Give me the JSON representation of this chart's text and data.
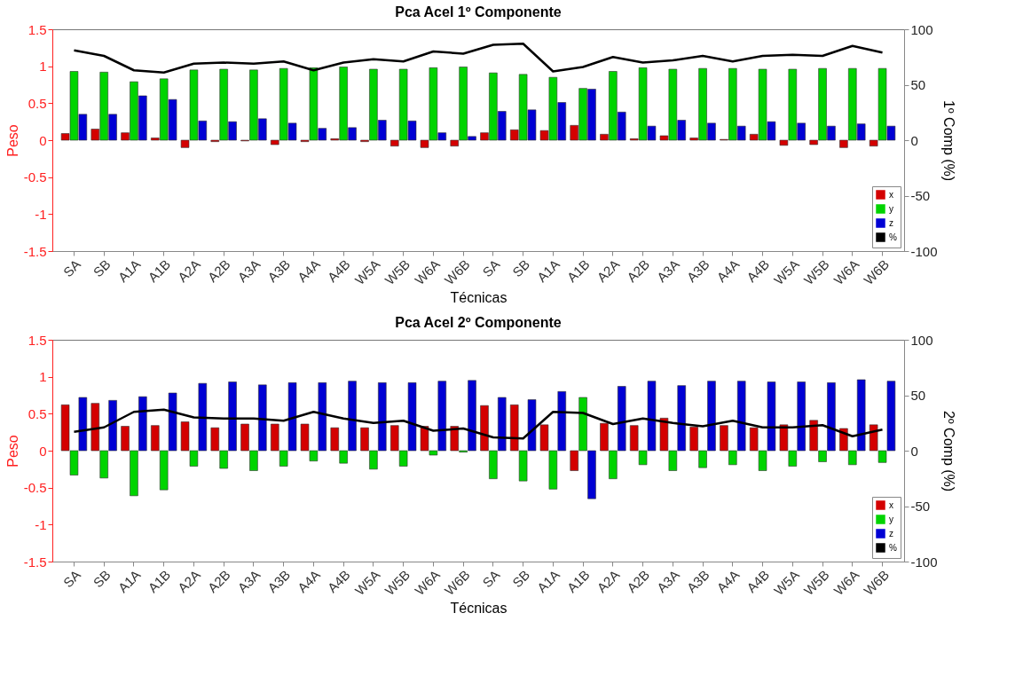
{
  "chart_data": [
    {
      "type": "bar",
      "title": "Pca Acel 1º Componente",
      "xlabel": "Técnicas",
      "ylabel": "Peso",
      "y2label": "1º Comp (%)",
      "categories": [
        "SA",
        "SB",
        "A1A",
        "A1B",
        "A2A",
        "A2B",
        "A3A",
        "A3B",
        "A4A",
        "A4B",
        "W5A",
        "W5B",
        "W6A",
        "W6B",
        "SA",
        "SB",
        "A1A",
        "A1B",
        "A2A",
        "A2B",
        "A3A",
        "A3B",
        "A4A",
        "A4B",
        "W5A",
        "W5B",
        "W6A",
        "W6B"
      ],
      "ylim": [
        -1.5,
        1.5
      ],
      "yticks": [
        -1.5,
        -1,
        -0.5,
        0,
        0.5,
        1,
        1.5
      ],
      "y2lim": [
        -100,
        100
      ],
      "y2ticks": [
        -100,
        -50,
        0,
        50,
        100
      ],
      "legend": "bottom right",
      "grid": false,
      "series": [
        {
          "name": "x",
          "color": "#d40000",
          "values": [
            0.09,
            0.15,
            0.1,
            0.03,
            -0.1,
            -0.02,
            -0.01,
            -0.06,
            -0.02,
            0.02,
            -0.02,
            -0.08,
            -0.1,
            -0.08,
            0.1,
            0.14,
            0.13,
            0.2,
            0.08,
            0.02,
            0.06,
            0.03,
            0.01,
            0.08,
            -0.07,
            -0.06,
            -0.1,
            -0.08
          ]
        },
        {
          "name": "y",
          "color": "#00d400",
          "values": [
            0.93,
            0.92,
            0.79,
            0.83,
            0.95,
            0.96,
            0.95,
            0.97,
            0.98,
            0.99,
            0.96,
            0.96,
            0.98,
            0.99,
            0.91,
            0.89,
            0.85,
            0.7,
            0.93,
            0.98,
            0.96,
            0.97,
            0.97,
            0.96,
            0.96,
            0.97,
            0.97,
            0.97
          ]
        },
        {
          "name": "z",
          "color": "#0000d4",
          "values": [
            0.35,
            0.35,
            0.6,
            0.55,
            0.26,
            0.25,
            0.29,
            0.23,
            0.16,
            0.17,
            0.27,
            0.26,
            0.1,
            0.05,
            0.39,
            0.41,
            0.51,
            0.69,
            0.38,
            0.19,
            0.27,
            0.23,
            0.19,
            0.25,
            0.23,
            0.19,
            0.22,
            0.19
          ]
        },
        {
          "name": "%",
          "color": "#000000",
          "type": "line",
          "axis": "y2",
          "values": [
            81,
            76,
            63,
            61,
            69,
            70,
            69,
            71,
            63,
            70,
            73,
            71,
            80,
            78,
            86,
            87,
            62,
            66,
            75,
            70,
            72,
            76,
            71,
            76,
            77,
            76,
            85,
            79
          ]
        }
      ]
    },
    {
      "type": "bar",
      "title": "Pca Acel 2º Componente",
      "xlabel": "Técnicas",
      "ylabel": "Peso",
      "y2label": "2º Comp (%)",
      "categories": [
        "SA",
        "SB",
        "A1A",
        "A1B",
        "A2A",
        "A2B",
        "A3A",
        "A3B",
        "A4A",
        "A4B",
        "W5A",
        "W5B",
        "W6A",
        "W6B",
        "SA",
        "SB",
        "A1A",
        "A1B",
        "A2A",
        "A2B",
        "A3A",
        "A3B",
        "A4A",
        "A4B",
        "W5A",
        "W5B",
        "W6A",
        "W6B"
      ],
      "ylim": [
        -1.5,
        1.5
      ],
      "yticks": [
        -1.5,
        -1,
        -0.5,
        0,
        0.5,
        1,
        1.5
      ],
      "y2lim": [
        -100,
        100
      ],
      "y2ticks": [
        -100,
        -50,
        0,
        50,
        100
      ],
      "legend": "bottom right",
      "grid": false,
      "series": [
        {
          "name": "x",
          "color": "#d40000",
          "values": [
            0.62,
            0.64,
            0.33,
            0.34,
            0.39,
            0.31,
            0.36,
            0.36,
            0.36,
            0.31,
            0.31,
            0.34,
            0.33,
            0.33,
            0.61,
            0.62,
            0.35,
            -0.27,
            0.37,
            0.34,
            0.44,
            0.32,
            0.34,
            0.31,
            0.35,
            0.41,
            0.3,
            0.35
          ]
        },
        {
          "name": "y",
          "color": "#00d400",
          "values": [
            -0.33,
            -0.37,
            -0.61,
            -0.53,
            -0.21,
            -0.24,
            -0.27,
            -0.21,
            -0.14,
            -0.17,
            -0.25,
            -0.21,
            -0.06,
            -0.02,
            -0.38,
            -0.41,
            -0.52,
            0.72,
            -0.38,
            -0.19,
            -0.27,
            -0.23,
            -0.19,
            -0.27,
            -0.21,
            -0.15,
            -0.19,
            -0.16
          ]
        },
        {
          "name": "z",
          "color": "#0000d4",
          "values": [
            0.72,
            0.68,
            0.73,
            0.78,
            0.91,
            0.93,
            0.89,
            0.92,
            0.92,
            0.94,
            0.92,
            0.92,
            0.94,
            0.95,
            0.72,
            0.69,
            0.8,
            -0.65,
            0.87,
            0.94,
            0.88,
            0.94,
            0.94,
            0.93,
            0.93,
            0.92,
            0.96,
            0.94
          ]
        },
        {
          "name": "%",
          "color": "#000000",
          "type": "line",
          "axis": "y2",
          "values": [
            17,
            21,
            35,
            37,
            30,
            29,
            29,
            27,
            35,
            29,
            25,
            27,
            18,
            20,
            12,
            11,
            35,
            34,
            24,
            29,
            25,
            22,
            27,
            21,
            21,
            23,
            13,
            19
          ]
        }
      ]
    }
  ]
}
